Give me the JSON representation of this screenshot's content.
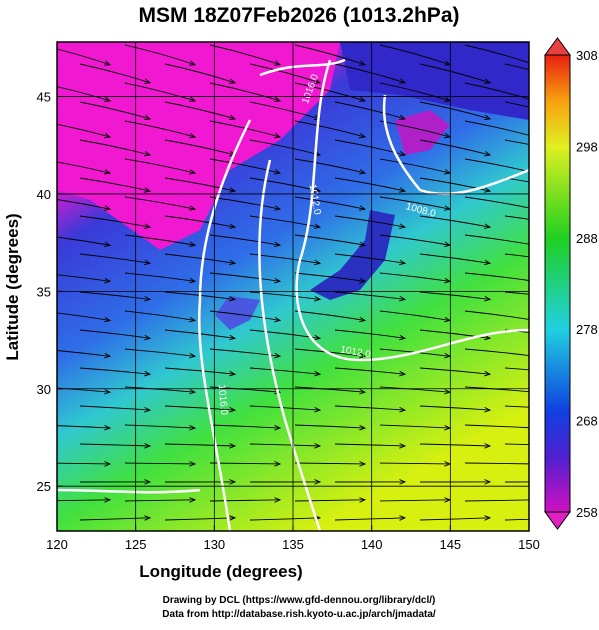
{
  "chart_data": {
    "type": "map",
    "title": "MSM 18Z07Feb2026 (1013.2hPa)",
    "x_label": "Longitude (degrees)",
    "y_label": "Latitude  (degrees)",
    "xlim": [
      120,
      150
    ],
    "xticks": [
      120,
      125,
      130,
      135,
      140,
      145,
      150
    ],
    "ylim": [
      22.7,
      47.8
    ],
    "yticks": [
      25,
      30,
      35,
      40,
      45
    ],
    "grid": true,
    "colorbar": {
      "lim": [
        258,
        308
      ],
      "ticks": [
        258,
        268,
        278,
        288,
        298,
        308
      ]
    },
    "contour_labels": [
      "1016.0",
      "1012.0",
      "1008.0",
      "1012.0",
      "1016.0"
    ],
    "credits": [
      "Drawing by DCL (https://www.gfd-dennou.org/library/dcl/)",
      "Data from http://database.rish.kyoto-u.ac.jp/arch/jmadata/"
    ]
  }
}
